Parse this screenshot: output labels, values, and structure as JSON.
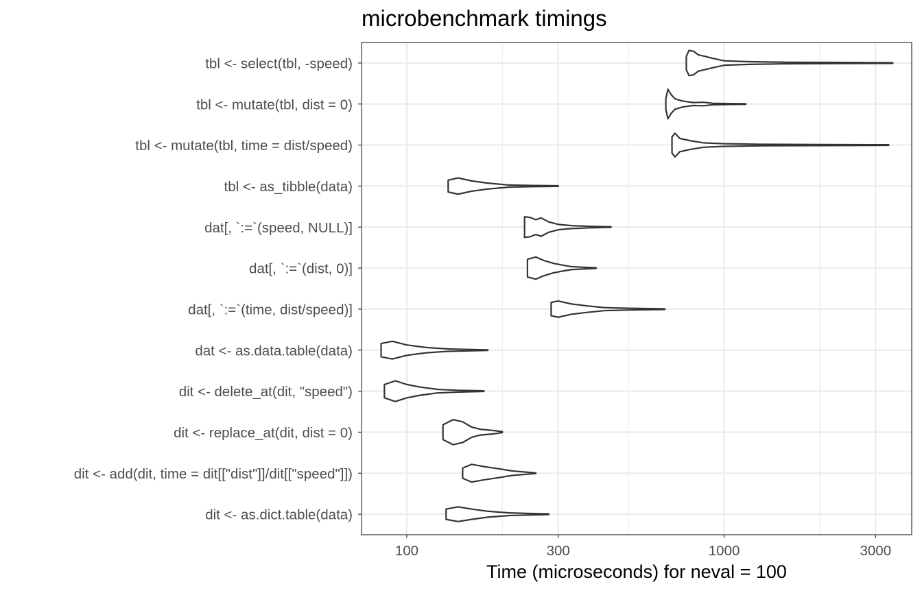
{
  "chart_data": {
    "type": "violin",
    "title": "microbenchmark timings",
    "xlabel": "Time (microseconds) for neval = 100",
    "ylabel": "",
    "x_scale": "log10",
    "xlim": [
      72,
      3900
    ],
    "x_ticks": [
      100,
      300,
      1000,
      3000
    ],
    "x_tick_labels": [
      "100",
      "300",
      "1000",
      "3000"
    ],
    "x_minor_ticks": [
      200,
      500,
      2000
    ],
    "grid": true,
    "legend": "none",
    "colors": {
      "outline": "#333333",
      "fill": "#ffffff",
      "grid": "#ebebeb",
      "tick_text": "#4d4d4d"
    },
    "categories": [
      "tbl <- select(tbl, -speed)",
      "tbl <- mutate(tbl, dist = 0)",
      "tbl <- mutate(tbl, time = dist/speed)",
      "tbl <- as_tibble(data)",
      "dat[, `:=`(speed, NULL)]",
      "dat[, `:=`(dist, 0)]",
      "dat[, `:=`(time, dist/speed)]",
      "dat <- as.data.table(data)",
      "dit <- delete_at(dit, \"speed\")",
      "dit <- replace_at(dit, dist = 0)",
      "dit <- add(dit, time = dit[[\"dist\"]]/dit[[\"speed\"]])",
      "dit <- as.dict.table(data)"
    ],
    "series": [
      {
        "category": "tbl <- select(tbl, -speed)",
        "min": 760,
        "max": 3400,
        "profile": [
          [
            760,
            0.45
          ],
          [
            775,
            0.85
          ],
          [
            800,
            0.8
          ],
          [
            830,
            0.55
          ],
          [
            870,
            0.45
          ],
          [
            920,
            0.32
          ],
          [
            1000,
            0.15
          ],
          [
            1200,
            0.09
          ],
          [
            1600,
            0.05
          ],
          [
            2400,
            0.035
          ],
          [
            3400,
            0.02
          ]
        ]
      },
      {
        "category": "tbl <- mutate(tbl, dist = 0)",
        "min": 655,
        "max": 1170,
        "profile": [
          [
            655,
            0.35
          ],
          [
            665,
            1.0
          ],
          [
            680,
            0.65
          ],
          [
            700,
            0.35
          ],
          [
            740,
            0.2
          ],
          [
            800,
            0.1
          ],
          [
            860,
            0.12
          ],
          [
            920,
            0.05
          ],
          [
            1050,
            0.03
          ],
          [
            1170,
            0.02
          ]
        ]
      },
      {
        "category": "tbl <- mutate(tbl, time = dist/speed)",
        "min": 685,
        "max": 3300,
        "profile": [
          [
            685,
            0.55
          ],
          [
            700,
            0.8
          ],
          [
            725,
            0.45
          ],
          [
            780,
            0.3
          ],
          [
            860,
            0.15
          ],
          [
            1000,
            0.09
          ],
          [
            1300,
            0.05
          ],
          [
            2000,
            0.035
          ],
          [
            3300,
            0.02
          ]
        ]
      },
      {
        "category": "tbl <- as_tibble(data)",
        "min": 135,
        "max": 300,
        "profile": [
          [
            135,
            0.4
          ],
          [
            145,
            0.55
          ],
          [
            160,
            0.35
          ],
          [
            180,
            0.2
          ],
          [
            210,
            0.07
          ],
          [
            250,
            0.04
          ],
          [
            300,
            0.02
          ]
        ]
      },
      {
        "category": "dat[, `:=`(speed, NULL)]",
        "min": 235,
        "max": 440,
        "profile": [
          [
            235,
            0.7
          ],
          [
            245,
            0.65
          ],
          [
            255,
            0.5
          ],
          [
            265,
            0.62
          ],
          [
            280,
            0.35
          ],
          [
            300,
            0.18
          ],
          [
            330,
            0.1
          ],
          [
            380,
            0.05
          ],
          [
            440,
            0.02
          ]
        ]
      },
      {
        "category": "dat[, `:=`(dist, 0)]",
        "min": 240,
        "max": 395,
        "profile": [
          [
            240,
            0.6
          ],
          [
            255,
            0.75
          ],
          [
            270,
            0.52
          ],
          [
            290,
            0.32
          ],
          [
            310,
            0.2
          ],
          [
            330,
            0.1
          ],
          [
            360,
            0.06
          ],
          [
            395,
            0.02
          ]
        ]
      },
      {
        "category": "dat[, `:=`(time, dist/speed)]",
        "min": 285,
        "max": 650,
        "profile": [
          [
            285,
            0.45
          ],
          [
            300,
            0.55
          ],
          [
            330,
            0.35
          ],
          [
            370,
            0.22
          ],
          [
            420,
            0.1
          ],
          [
            500,
            0.06
          ],
          [
            650,
            0.02
          ]
        ]
      },
      {
        "category": "dat <- as.data.table(data)",
        "min": 83,
        "max": 180,
        "profile": [
          [
            83,
            0.45
          ],
          [
            90,
            0.6
          ],
          [
            100,
            0.35
          ],
          [
            115,
            0.18
          ],
          [
            135,
            0.08
          ],
          [
            155,
            0.05
          ],
          [
            180,
            0.02
          ]
        ]
      },
      {
        "category": "dit <- delete_at(dit, \"speed\")",
        "min": 85,
        "max": 175,
        "profile": [
          [
            85,
            0.45
          ],
          [
            92,
            0.7
          ],
          [
            100,
            0.45
          ],
          [
            110,
            0.28
          ],
          [
            125,
            0.12
          ],
          [
            145,
            0.06
          ],
          [
            175,
            0.02
          ]
        ]
      },
      {
        "category": "dit <- replace_at(dit, dist = 0)",
        "min": 130,
        "max": 200,
        "profile": [
          [
            130,
            0.5
          ],
          [
            140,
            0.85
          ],
          [
            150,
            0.7
          ],
          [
            160,
            0.35
          ],
          [
            170,
            0.2
          ],
          [
            180,
            0.15
          ],
          [
            190,
            0.1
          ],
          [
            200,
            0.03
          ]
        ]
      },
      {
        "category": "dit <- add(dit, time = dit[[\"dist\"]]/dit[[\"speed\"]])",
        "min": 150,
        "max": 255,
        "profile": [
          [
            150,
            0.35
          ],
          [
            160,
            0.6
          ],
          [
            175,
            0.45
          ],
          [
            195,
            0.3
          ],
          [
            215,
            0.15
          ],
          [
            235,
            0.08
          ],
          [
            255,
            0.02
          ]
        ]
      },
      {
        "category": "dit <- as.dict.table(data)",
        "min": 133,
        "max": 280,
        "profile": [
          [
            133,
            0.35
          ],
          [
            145,
            0.5
          ],
          [
            160,
            0.35
          ],
          [
            180,
            0.2
          ],
          [
            210,
            0.09
          ],
          [
            245,
            0.05
          ],
          [
            280,
            0.02
          ]
        ]
      }
    ]
  }
}
